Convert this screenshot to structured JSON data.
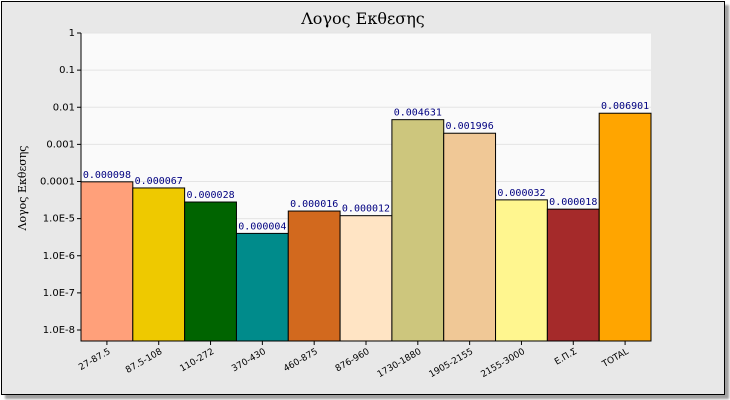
{
  "chart_data": {
    "type": "bar",
    "title": "Λογος Εκθεσης",
    "ylabel": "Λογος Εκθεσης",
    "xlabel": "",
    "yscale": "log",
    "ylim": [
      1e-08,
      1
    ],
    "grid": true,
    "y_tick_values": [
      1,
      0.1,
      0.01,
      0.001,
      0.0001,
      1e-05,
      1e-06,
      1e-07,
      1e-08
    ],
    "y_tick_labels": [
      "1",
      "0.1",
      "0.01",
      "0.001",
      "0.0001",
      "1.0E-5",
      "1.0E-6",
      "1.0E-7",
      "1.0E-8"
    ],
    "categories": [
      "27-87.5",
      "87.5-108",
      "110-272",
      "370-430",
      "460-875",
      "876-960",
      "1730-1880",
      "1905-2155",
      "2155-3000",
      "Ε.Π.Σ",
      "TOTAL"
    ],
    "values": [
      9.8e-05,
      6.7e-05,
      2.8e-05,
      4e-06,
      1.6e-05,
      1.2e-05,
      0.004631,
      0.001996,
      3.2e-05,
      1.8e-05,
      0.006901
    ],
    "value_labels": [
      "0.000098",
      "0.000067",
      "0.000028",
      "0.000004",
      "0.000016",
      "0.000012",
      "0.004631",
      "0.001996",
      "0.000032",
      "0.000018",
      "0.006901"
    ],
    "colors": [
      "#ffa07a",
      "#eec900",
      "#006400",
      "#008b8b",
      "#d2691e",
      "#ffe4c4",
      "#cdc67d",
      "#f0c896",
      "#fff68f",
      "#a52a2a",
      "#ffa500"
    ]
  }
}
